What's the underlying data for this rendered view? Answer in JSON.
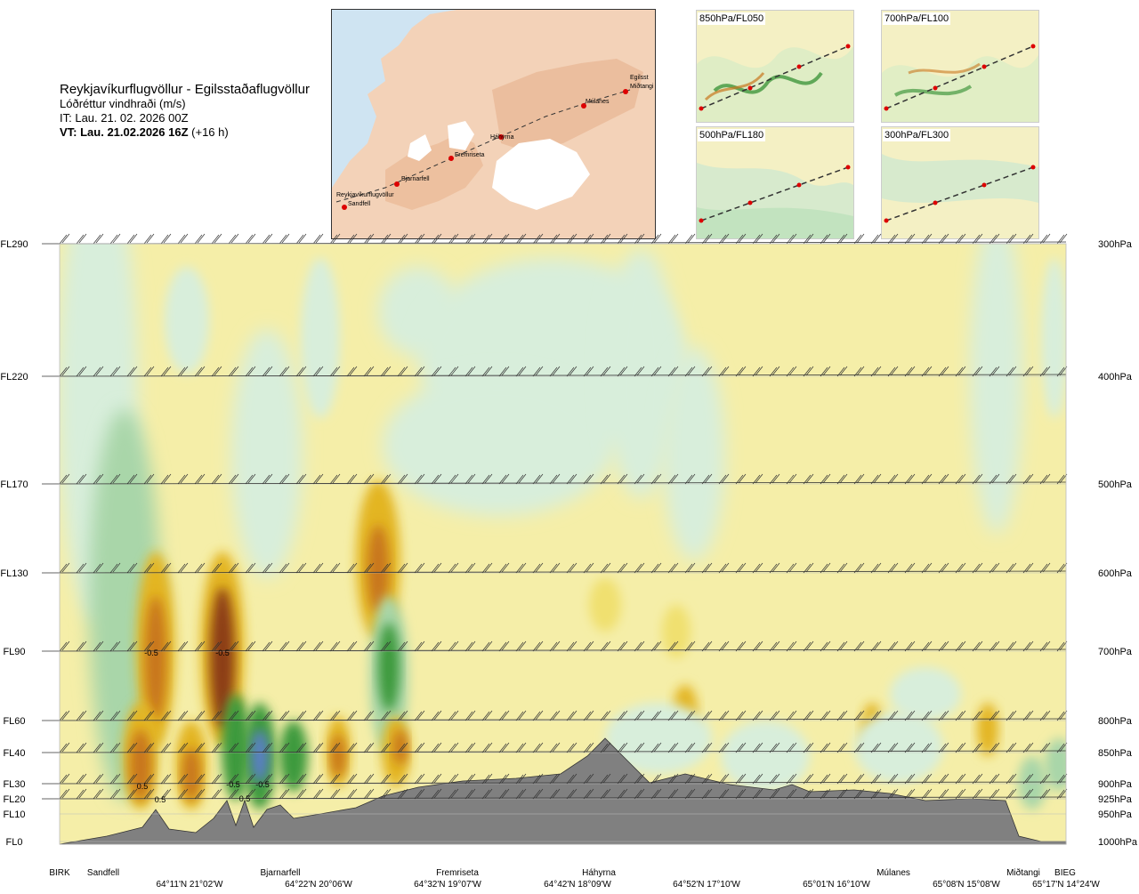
{
  "header": {
    "title": "Reykjavíkurflugvöllur - Egilsstaðaflugvöllur",
    "subtitle": "Lóðréttur vindhraði (m/s)",
    "it_line": "IT: Lau. 21. 02. 2026 00Z",
    "vt_bold": "VT: Lau. 21.02.2026 16Z",
    "vt_offset": " (+16 h)"
  },
  "map": {
    "points": [
      "Reykjavíkurflugvöllur",
      "Sandfell",
      "Bjarnarfell",
      "Fremriseta",
      "Háhyrna",
      "Múlanes",
      "Egilsst",
      "Miðtangi"
    ]
  },
  "mini_maps": [
    {
      "label": "850hPa/FL050"
    },
    {
      "label": "700hPa/FL100"
    },
    {
      "label": "500hPa/FL180"
    },
    {
      "label": "300hPa/FL300"
    }
  ],
  "chart_data": {
    "type": "heatmap",
    "title": "Lóðréttur vindhraði (m/s)",
    "y_levels_left": [
      "FL290",
      "FL220",
      "FL170",
      "FL130",
      "FL90",
      "FL60",
      "FL40",
      "FL30",
      "FL20",
      "FL10",
      "FL0"
    ],
    "y_levels_right": [
      "300hPa",
      "400hPa",
      "500hPa",
      "600hPa",
      "700hPa",
      "800hPa",
      "850hPa",
      "900hPa",
      "925hPa",
      "950hPa",
      "1000hPa"
    ],
    "x_stations": [
      "BIRK",
      "Sandfell",
      "Bjarnarfell",
      "Fremriseta",
      "Háhyrna",
      "Múlanes",
      "Miðtangi",
      "BIEG"
    ],
    "x_coords": [
      "64°11'N 21°02'W",
      "64°22'N 20°06'W",
      "64°32'N 19°07'W",
      "64°42'N 18°09'W",
      "64°52'N 17°10'W",
      "65°01'N 16°10'W",
      "65°08'N 15°08'W",
      "65°17'N 14°24'W"
    ],
    "contour_labels": [
      "-0.5",
      "-0.5",
      "0.5",
      "0.5",
      "-0.5",
      "0.5",
      "-0.5"
    ],
    "colors": {
      "neutral": "#f5eea8",
      "weak_down": "#d8eedb",
      "down": "#a9d6a9",
      "strong_down": "#3e9a3e",
      "very_strong_down": "#5a7fc4",
      "weak_up": "#f0e070",
      "up": "#e3b520",
      "strong_up": "#c8761e",
      "very_strong_up": "#8c3d14",
      "terrain": "#808080"
    }
  }
}
